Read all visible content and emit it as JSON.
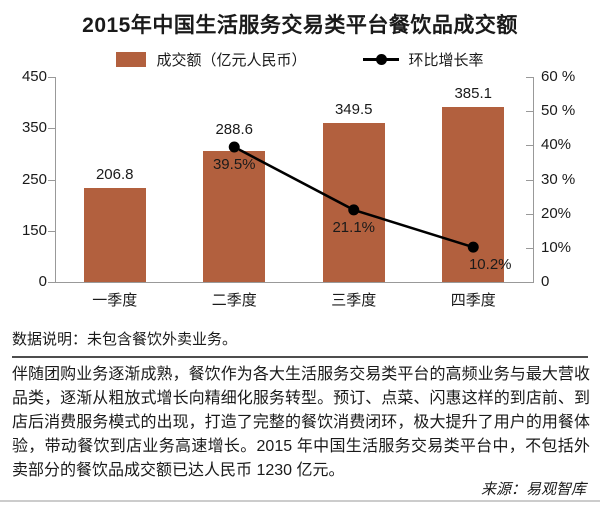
{
  "title": "2015年中国生活服务交易类平台餐饮品成交额",
  "legend": {
    "bar_label": "成交额（亿元人民币）",
    "line_label": "环比增长率"
  },
  "colors": {
    "bar": "#b2603e",
    "line": "#000000",
    "axis": "#999999",
    "divider": "#4d4d4d",
    "bottom_rule": "#cccccc"
  },
  "chart_data": {
    "type": "bar",
    "title": "2015年中国生活服务交易类平台餐饮品成交额",
    "categories": [
      "一季度",
      "二季度",
      "三季度",
      "四季度"
    ],
    "series": [
      {
        "name": "成交额（亿元人民币）",
        "type": "bar",
        "axis": "left",
        "values": [
          206.8,
          288.6,
          349.5,
          385.1
        ],
        "value_labels": [
          "206.8",
          "288.6",
          "349.5",
          "385.1"
        ]
      },
      {
        "name": "环比增长率",
        "type": "line",
        "axis": "right",
        "values": [
          null,
          39.5,
          21.1,
          10.2
        ],
        "value_labels": [
          "",
          "39.5%",
          "21.1%",
          "10.2%"
        ]
      }
    ],
    "left_axis": {
      "min": 0,
      "max": 450,
      "tick_labels": [
        "450",
        "350",
        "250",
        "150",
        "0"
      ]
    },
    "right_axis": {
      "min": 0,
      "max": 60,
      "tick_labels": [
        "60 %",
        "50 %",
        "40%",
        "30 %",
        "20%",
        "10%",
        "0"
      ]
    },
    "legend_position": "top",
    "grid": false
  },
  "notes": {
    "data_note": "数据说明：未包含餐饮外卖业务。",
    "paragraph": "伴随团购业务逐渐成熟，餐饮作为各大生活服务交易类平台的高频业务与最大营收品类，逐渐从粗放式增长向精细化服务转型。预订、点菜、闪惠这样的到店前、到店后消费服务模式的出现，打造了完整的餐饮消费闭环，极大提升了用户的用餐体验，带动餐饮到店业务高速增长。2015 年中国生活服务交易类平台中，不包括外卖部分的餐饮品成交额已达人民币 1230 亿元。",
    "source": "来源：易观智库"
  }
}
